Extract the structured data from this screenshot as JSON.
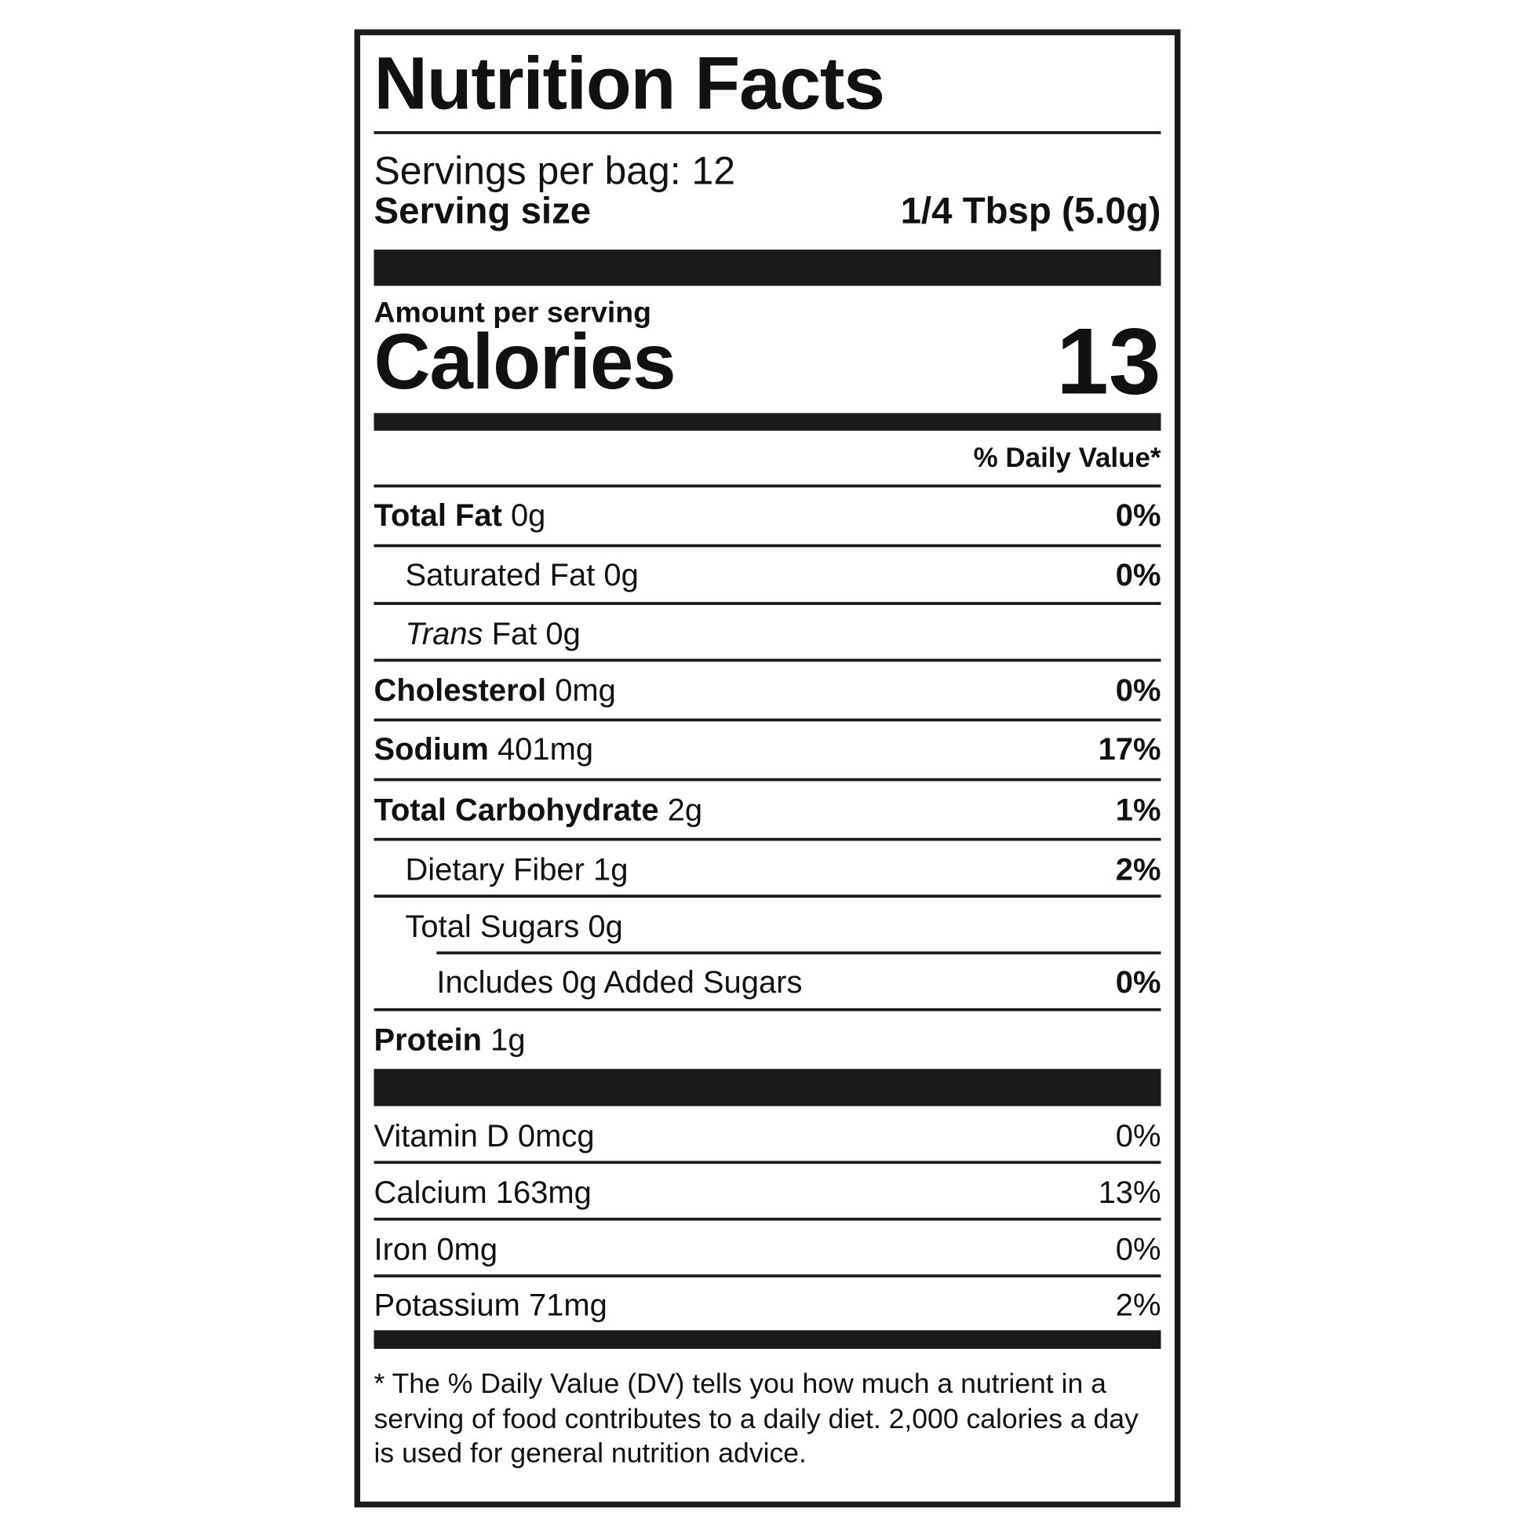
{
  "title": "Nutrition Facts",
  "servings": "Servings per bag: 12",
  "serving_size": {
    "label": "Serving size",
    "value": "1/4 Tbsp (5.0g)"
  },
  "amount_per_serving": "Amount per serving",
  "calories": {
    "label": "Calories",
    "value": "13"
  },
  "daily_value_header": "% Daily Value*",
  "nutrients": [
    {
      "name": "Total Fat",
      "amount": "0g",
      "dv": "0%"
    },
    {
      "name": "Saturated Fat",
      "amount": "0g",
      "dv": "0%"
    },
    {
      "name_italic": "Trans",
      "name": "Fat",
      "amount": "0g"
    },
    {
      "name": "Cholesterol",
      "amount": "0mg",
      "dv": "0%"
    },
    {
      "name": "Sodium",
      "amount": "401mg",
      "dv": "17%"
    },
    {
      "name": "Total Carbohydrate",
      "amount": "2g",
      "dv": "1%"
    },
    {
      "name": "Dietary Fiber",
      "amount": "1g",
      "dv": "2%"
    },
    {
      "name": "Total Sugars",
      "amount": "0g"
    },
    {
      "name": "Includes 0g Added Sugars",
      "dv": "0%"
    },
    {
      "name": "Protein",
      "amount": "1g"
    }
  ],
  "vitamins": [
    {
      "name": "Vitamin D",
      "amount": "0mcg",
      "dv": "0%"
    },
    {
      "name": "Calcium",
      "amount": "163mg",
      "dv": "13%"
    },
    {
      "name": "Iron",
      "amount": "0mg",
      "dv": "0%"
    },
    {
      "name": "Potassium",
      "amount": "71mg",
      "dv": "2%"
    }
  ],
  "footnote": "* The % Daily Value (DV) tells you how much a nutrient in a serving of food contributes to a daily diet. 2,000 calories a day is used for general nutrition advice."
}
